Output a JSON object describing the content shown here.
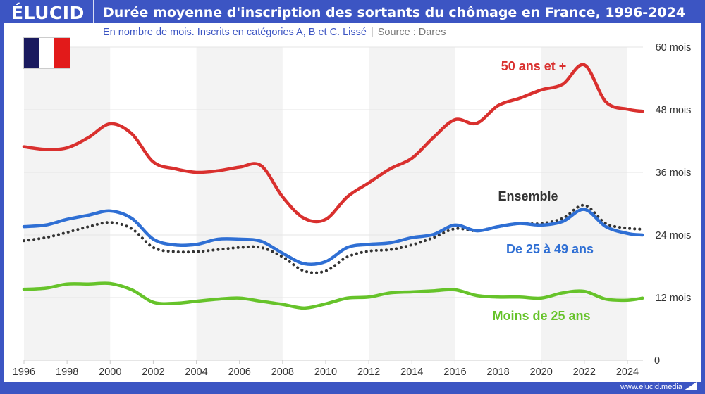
{
  "header": {
    "logo": "ÉLUCID",
    "title": "Durée moyenne d'inscription des sortants du chômage en France, 1996-2024"
  },
  "subtitle": "En nombre de mois. Inscrits en catégories A, B et C. Lissé",
  "source": "Source : Dares",
  "footer": "www.elucid.media",
  "flag_colors": [
    "#1a1a5e",
    "#ffffff",
    "#e21a1a"
  ],
  "chart_data": {
    "type": "line",
    "title": "Durée moyenne d'inscription des sortants du chômage en France, 1996-2024",
    "xlim": [
      1996,
      2024.7
    ],
    "ylim": [
      0,
      60
    ],
    "x_ticks": [
      "1996",
      "1998",
      "2000",
      "2002",
      "2004",
      "2006",
      "2008",
      "2010",
      "2012",
      "2014",
      "2016",
      "2018",
      "2020",
      "2022",
      "2024"
    ],
    "y_ticks": [
      {
        "v": 0,
        "label": "0"
      },
      {
        "v": 12,
        "label": "12 mois"
      },
      {
        "v": 24,
        "label": "24 mois"
      },
      {
        "v": 36,
        "label": "36 mois"
      },
      {
        "v": 48,
        "label": "48 mois"
      },
      {
        "v": 60,
        "label": "60 mois"
      }
    ],
    "shaded_periods": [
      [
        1996,
        2000
      ],
      [
        2004,
        2008
      ],
      [
        2012,
        2016
      ],
      [
        2020,
        2024
      ]
    ],
    "x": [
      1996,
      1997,
      1998,
      1999,
      2000,
      2001,
      2002,
      2003,
      2004,
      2005,
      2006,
      2007,
      2008,
      2009,
      2010,
      2011,
      2012,
      2013,
      2014,
      2015,
      2016,
      2017,
      2018,
      2019,
      2020,
      2021,
      2022,
      2023,
      2024,
      2024.7
    ],
    "series": [
      {
        "name": "50 ans et +",
        "color": "#d9302e",
        "style": "solid",
        "values": [
          40.9,
          40.4,
          40.7,
          42.7,
          45.3,
          43.4,
          38.0,
          36.7,
          36.0,
          36.3,
          37.0,
          37.3,
          31.3,
          27.2,
          27.0,
          31.3,
          34.0,
          36.7,
          38.7,
          42.7,
          46.1,
          45.4,
          48.8,
          50.2,
          51.8,
          52.9,
          56.6,
          49.5,
          48.1,
          47.7
        ]
      },
      {
        "name": "Ensemble",
        "color": "#333333",
        "style": "dotted",
        "values": [
          22.9,
          23.5,
          24.5,
          25.6,
          26.4,
          25.2,
          21.6,
          20.8,
          20.8,
          21.2,
          21.6,
          21.6,
          19.8,
          17.1,
          17.1,
          19.8,
          20.9,
          21.2,
          22.1,
          23.5,
          25.2,
          24.8,
          25.6,
          26.2,
          26.2,
          27.2,
          29.7,
          26.2,
          25.3,
          25.1
        ]
      },
      {
        "name": "De 25 à 49 ans",
        "color": "#2f6fd4",
        "style": "solid",
        "values": [
          25.6,
          25.9,
          27.0,
          27.8,
          28.6,
          27.2,
          23.2,
          22.1,
          22.2,
          23.2,
          23.2,
          22.8,
          20.5,
          18.5,
          18.9,
          21.6,
          22.2,
          22.5,
          23.5,
          24.1,
          25.9,
          24.8,
          25.6,
          26.2,
          25.9,
          26.6,
          28.9,
          25.6,
          24.3,
          24.0
        ]
      },
      {
        "name": "Moins de 25 ans",
        "color": "#66c32a",
        "style": "solid",
        "values": [
          13.6,
          13.8,
          14.6,
          14.6,
          14.7,
          13.5,
          11.1,
          10.9,
          11.3,
          11.7,
          11.9,
          11.3,
          10.7,
          10.0,
          10.8,
          11.9,
          12.1,
          12.9,
          13.1,
          13.3,
          13.5,
          12.4,
          12.1,
          12.1,
          11.9,
          12.9,
          13.2,
          11.7,
          11.5,
          11.9
        ]
      }
    ]
  }
}
